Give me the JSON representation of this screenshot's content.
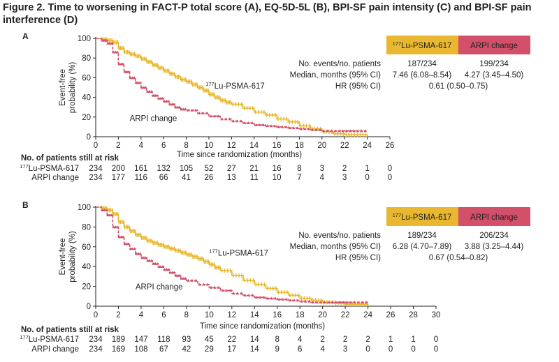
{
  "figure_title": "Figure 2. Time to worsening in FACT-P total score (A), EQ-5D-5L (B), BPI-SF pain intensity (C) and BPI-SF pain interference (D)",
  "colors": {
    "lu": "#e9b830",
    "arpi": "#d2506a",
    "lu_text": "#c99a10",
    "arpi_text": "#c8506a"
  },
  "risk_table_title": "No. of patients still at risk",
  "chart_data": [
    {
      "panel": "A",
      "type": "line",
      "subtype": "kaplan-meier",
      "xlabel": "Time since randomization (months)",
      "ylabel": "Event-free probability (%)",
      "xlim": [
        0,
        26
      ],
      "ylim": [
        0,
        100
      ],
      "xticks": [
        0,
        2,
        4,
        6,
        8,
        10,
        12,
        14,
        16,
        18,
        20,
        22,
        24,
        26
      ],
      "yticks": [
        0,
        20,
        40,
        60,
        80,
        100
      ],
      "series": [
        {
          "name": "177Lu-PSMA-617",
          "legend_sup": "177",
          "legend_main": "Lu-PSMA-617",
          "color": "#e9b830",
          "x": [
            0,
            0.5,
            1,
            1.5,
            2,
            2.5,
            3,
            3.5,
            4,
            4.5,
            5,
            5.5,
            6,
            6.5,
            7,
            7.5,
            8,
            8.5,
            9,
            9.5,
            10,
            10.5,
            11,
            11.5,
            12,
            13,
            14,
            15,
            16,
            17,
            18,
            19,
            20,
            21,
            22,
            23,
            24
          ],
          "y": [
            100,
            99,
            98,
            96,
            90,
            86,
            84,
            82,
            79,
            76,
            73,
            70,
            67,
            64,
            61,
            58,
            56,
            53,
            50,
            47,
            43,
            40,
            37,
            35,
            33,
            29,
            25,
            22,
            18,
            15,
            11,
            8,
            5,
            3,
            2,
            2,
            0
          ]
        },
        {
          "name": "ARPI change",
          "color": "#d2506a",
          "x": [
            0,
            0.5,
            1,
            1.5,
            2,
            2.5,
            3,
            3.5,
            4,
            4.5,
            5,
            5.5,
            6,
            6.5,
            7,
            7.5,
            8,
            9,
            10,
            11,
            12,
            13,
            14,
            15,
            16,
            17,
            18,
            19,
            20,
            21,
            22,
            23,
            24
          ],
          "y": [
            100,
            98,
            95,
            86,
            74,
            66,
            60,
            55,
            50,
            46,
            42,
            39,
            36,
            33,
            30,
            28,
            27,
            24,
            21,
            18,
            16,
            14,
            12,
            11,
            10,
            9,
            8,
            7,
            6,
            6,
            6,
            6,
            6
          ]
        }
      ],
      "annotations": [
        {
          "text_sup": "177",
          "text_main": "Lu-PSMA-617",
          "x": 9.7,
          "y": 49
        },
        {
          "text": "ARPI change",
          "x": 3.0,
          "y": 16
        }
      ],
      "legend_box": {
        "header_lu_sup": "177",
        "header_lu_main": "Lu-PSMA-617",
        "header_arpi": "ARPI change",
        "rows": [
          {
            "label": "No. events/no. patients",
            "lu": "187/234",
            "arpi": "199/234"
          },
          {
            "label": "Median, months (95% CI)",
            "lu": "7.46 (6.08–8.54)",
            "arpi": "4.27 (3.45–4.50)"
          },
          {
            "label": "HR (95% CI)",
            "both": "0.61 (0.50–0.75)"
          }
        ]
      },
      "risk_table": {
        "lu_label_sup": "177",
        "lu_label_main": "Lu-PSMA-617",
        "arpi_label": "ARPI change",
        "lu": [
          "234",
          "200",
          "161",
          "132",
          "105",
          "52",
          "27",
          "21",
          "16",
          "8",
          "3",
          "2",
          "1",
          "0"
        ],
        "arpi": [
          "234",
          "177",
          "116",
          "66",
          "41",
          "26",
          "13",
          "11",
          "10",
          "7",
          "4",
          "3",
          "0",
          "0"
        ]
      }
    },
    {
      "panel": "B",
      "type": "line",
      "subtype": "kaplan-meier",
      "xlabel": "Time since randomization (months)",
      "ylabel": "Event-free probability (%)",
      "xlim": [
        0,
        30
      ],
      "ylim": [
        0,
        100
      ],
      "xticks": [
        0,
        2,
        4,
        6,
        8,
        10,
        12,
        14,
        16,
        18,
        20,
        22,
        24,
        26,
        28,
        30
      ],
      "yticks": [
        0,
        20,
        40,
        60,
        80,
        100
      ],
      "series": [
        {
          "name": "177Lu-PSMA-617",
          "legend_sup": "177",
          "legend_main": "Lu-PSMA-617",
          "color": "#e9b830",
          "x": [
            0,
            0.5,
            1,
            1.5,
            2,
            2.5,
            3,
            3.5,
            4,
            4.5,
            5,
            5.5,
            6,
            6.5,
            7,
            7.5,
            8,
            8.5,
            9,
            9.5,
            10,
            10.5,
            11,
            12,
            13,
            14,
            15,
            16,
            17,
            18,
            19,
            20,
            21,
            22,
            23,
            24
          ],
          "y": [
            100,
            99,
            97,
            93,
            85,
            80,
            76,
            72,
            69,
            66,
            64,
            62,
            60,
            58,
            56,
            54,
            52,
            50,
            48,
            45,
            42,
            39,
            36,
            31,
            26,
            22,
            18,
            14,
            11,
            8,
            6,
            4,
            3,
            2,
            2,
            1
          ]
        },
        {
          "name": "ARPI change",
          "color": "#d2506a",
          "x": [
            0,
            0.5,
            1,
            1.5,
            2,
            2.5,
            3,
            3.5,
            4,
            4.5,
            5,
            5.5,
            6,
            6.5,
            7,
            7.5,
            8,
            9,
            10,
            11,
            12,
            13,
            14,
            15,
            16,
            17,
            18,
            19,
            20,
            21,
            22,
            23,
            24
          ],
          "y": [
            100,
            97,
            92,
            80,
            70,
            63,
            58,
            53,
            49,
            46,
            43,
            40,
            37,
            34,
            31,
            28,
            26,
            22,
            19,
            16,
            13,
            11,
            9,
            8,
            7,
            6,
            5,
            4,
            4,
            4,
            4,
            4,
            4
          ]
        }
      ],
      "annotations": [
        {
          "text_sup": "177",
          "text_main": "Lu-PSMA-617",
          "x": 10.0,
          "y": 51
        },
        {
          "text": "ARPI change",
          "x": 3.5,
          "y": 17
        }
      ],
      "legend_box": {
        "header_lu_sup": "177",
        "header_lu_main": "Lu-PSMA-617",
        "header_arpi": "ARPI change",
        "rows": [
          {
            "label": "No. events/no. patients",
            "lu": "189/234",
            "arpi": "206/234"
          },
          {
            "label": "Median, months (95% CI)",
            "lu": "6.28 (4.70–7.89)",
            "arpi": "3.88 (3.25–4.44)"
          },
          {
            "label": "HR (95% CI)",
            "both": "0.67 (0.54–0.82)"
          }
        ]
      },
      "risk_table": {
        "lu_label_sup": "177",
        "lu_label_main": "Lu-PSMA-617",
        "arpi_label": "ARPI change",
        "lu": [
          "234",
          "189",
          "147",
          "118",
          "93",
          "45",
          "22",
          "14",
          "8",
          "4",
          "2",
          "2",
          "2",
          "1",
          "1",
          "0"
        ],
        "arpi": [
          "234",
          "169",
          "108",
          "67",
          "42",
          "29",
          "17",
          "14",
          "9",
          "6",
          "4",
          "3",
          "0",
          "0",
          "0",
          "0"
        ]
      }
    }
  ]
}
